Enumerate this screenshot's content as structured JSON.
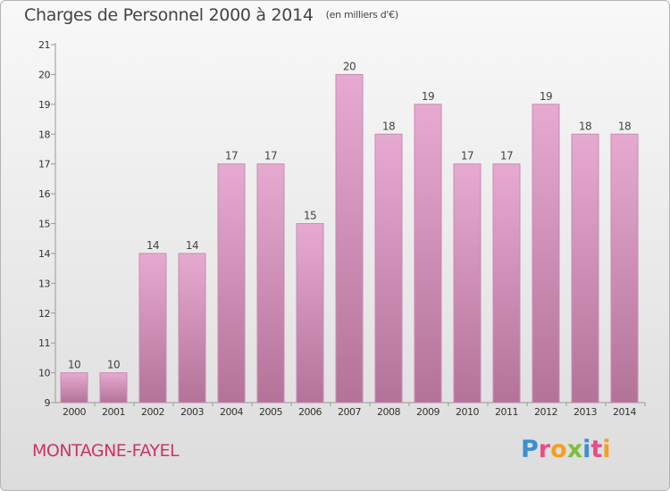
{
  "header": {
    "title": "Charges de Personnel 2000 à 2014",
    "unit": "(en milliers d'€)"
  },
  "footer": {
    "commune": "MONTAGNE-FAYEL",
    "logo_letters": [
      "P",
      "r",
      "o",
      "x",
      "i",
      "t",
      "i"
    ]
  },
  "colors": {
    "bar_top": "#e6aad1",
    "bar_bottom": "#b37399",
    "bar_edge": "#c98ab0",
    "commune": "#cc3366",
    "logo": [
      "#3a8fd0",
      "#e84c8a",
      "#f4a01c",
      "#7cbf3a",
      "#3a8fd0",
      "#e84c8a",
      "#f4a01c"
    ]
  },
  "chart_data": {
    "type": "bar",
    "categories": [
      "2000",
      "2001",
      "2002",
      "2003",
      "2004",
      "2005",
      "2006",
      "2007",
      "2008",
      "2009",
      "2010",
      "2011",
      "2012",
      "2013",
      "2014"
    ],
    "values": [
      10,
      10,
      14,
      14,
      17,
      17,
      15,
      20,
      18,
      19,
      17,
      17,
      19,
      18,
      18
    ],
    "title": "Charges de Personnel 2000 à 2014",
    "ylim": [
      9,
      21
    ],
    "yticks": [
      9,
      10,
      11,
      12,
      13,
      14,
      15,
      16,
      17,
      18,
      19,
      20,
      21
    ],
    "grid": false,
    "legend": "none"
  }
}
